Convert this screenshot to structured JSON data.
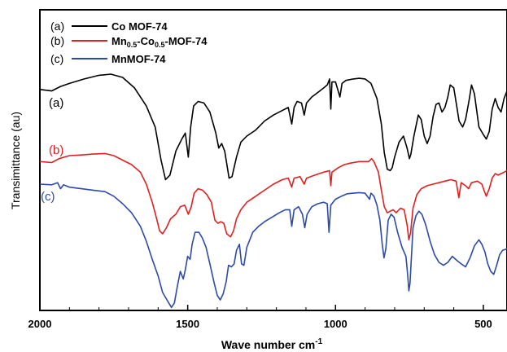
{
  "chart_data": {
    "type": "line",
    "title": "",
    "xlabel": "Wave number cm",
    "xlabel_superscript": "-1",
    "ylabel": "Transimittance (au)",
    "xlim": [
      2000,
      420
    ],
    "x_reversed": true,
    "ylim": [
      0,
      10
    ],
    "y_ticks_shown": false,
    "x_ticks": [
      2000,
      1500,
      1000,
      500
    ],
    "grid": false,
    "legend_position": "top-left",
    "series": [
      {
        "name": "Co MOF-74",
        "tag": "(a)",
        "curve_label": "(a)",
        "color": "#000000",
        "points": [
          [
            2000,
            7.35
          ],
          [
            1960,
            7.3
          ],
          [
            1930,
            7.45
          ],
          [
            1900,
            7.55
          ],
          [
            1850,
            7.7
          ],
          [
            1800,
            7.82
          ],
          [
            1760,
            7.86
          ],
          [
            1720,
            7.75
          ],
          [
            1680,
            7.4
          ],
          [
            1640,
            6.8
          ],
          [
            1610,
            6.1
          ],
          [
            1590,
            5.0
          ],
          [
            1575,
            4.35
          ],
          [
            1560,
            4.5
          ],
          [
            1540,
            5.3
          ],
          [
            1520,
            5.7
          ],
          [
            1508,
            5.9
          ],
          [
            1498,
            5.1
          ],
          [
            1490,
            6.1
          ],
          [
            1480,
            6.8
          ],
          [
            1465,
            6.95
          ],
          [
            1445,
            6.9
          ],
          [
            1425,
            6.6
          ],
          [
            1405,
            5.9
          ],
          [
            1395,
            5.4
          ],
          [
            1385,
            5.55
          ],
          [
            1375,
            5.3
          ],
          [
            1360,
            4.4
          ],
          [
            1350,
            4.45
          ],
          [
            1335,
            5.1
          ],
          [
            1320,
            5.6
          ],
          [
            1300,
            5.8
          ],
          [
            1270,
            6.0
          ],
          [
            1240,
            6.3
          ],
          [
            1210,
            6.5
          ],
          [
            1180,
            6.65
          ],
          [
            1160,
            6.75
          ],
          [
            1148,
            6.2
          ],
          [
            1140,
            6.75
          ],
          [
            1130,
            6.95
          ],
          [
            1115,
            6.9
          ],
          [
            1106,
            6.5
          ],
          [
            1098,
            6.9
          ],
          [
            1080,
            7.1
          ],
          [
            1060,
            7.25
          ],
          [
            1040,
            7.4
          ],
          [
            1028,
            7.5
          ],
          [
            1020,
            7.7
          ],
          [
            1016,
            6.7
          ],
          [
            1012,
            7.6
          ],
          [
            1000,
            7.6
          ],
          [
            985,
            7.1
          ],
          [
            978,
            7.55
          ],
          [
            965,
            7.65
          ],
          [
            940,
            7.7
          ],
          [
            920,
            7.72
          ],
          [
            900,
            7.7
          ],
          [
            880,
            7.55
          ],
          [
            860,
            7.05
          ],
          [
            845,
            6.2
          ],
          [
            835,
            5.25
          ],
          [
            825,
            4.7
          ],
          [
            815,
            4.65
          ],
          [
            808,
            4.75
          ],
          [
            800,
            5.1
          ],
          [
            785,
            5.6
          ],
          [
            770,
            5.8
          ],
          [
            758,
            5.4
          ],
          [
            750,
            5.05
          ],
          [
            745,
            5.2
          ],
          [
            735,
            5.8
          ],
          [
            720,
            6.5
          ],
          [
            710,
            6.35
          ],
          [
            700,
            5.8
          ],
          [
            690,
            5.55
          ],
          [
            680,
            5.8
          ],
          [
            670,
            6.45
          ],
          [
            660,
            6.85
          ],
          [
            650,
            6.9
          ],
          [
            640,
            6.6
          ],
          [
            630,
            6.75
          ],
          [
            620,
            7.1
          ],
          [
            612,
            7.5
          ],
          [
            600,
            7.4
          ],
          [
            590,
            6.8
          ],
          [
            582,
            6.3
          ],
          [
            570,
            6.1
          ],
          [
            560,
            6.35
          ],
          [
            548,
            7.0
          ],
          [
            540,
            7.5
          ],
          [
            530,
            7.2
          ],
          [
            515,
            6.1
          ],
          [
            500,
            5.85
          ],
          [
            490,
            5.7
          ],
          [
            480,
            5.95
          ],
          [
            470,
            6.7
          ],
          [
            460,
            7.05
          ],
          [
            450,
            6.75
          ],
          [
            440,
            6.6
          ],
          [
            430,
            7.05
          ],
          [
            420,
            7.3
          ]
        ]
      },
      {
        "name": "Mn0.5-Co0.5-MOF-74",
        "name_parts": [
          "Mn",
          "0.5",
          "-Co",
          "0.5",
          "-MOF-74"
        ],
        "tag": "(b)",
        "curve_label": "(b)",
        "color": "#e02020",
        "points": [
          [
            2000,
            4.95
          ],
          [
            1960,
            4.92
          ],
          [
            1935,
            5.05
          ],
          [
            1900,
            5.15
          ],
          [
            1860,
            5.17
          ],
          [
            1820,
            5.2
          ],
          [
            1780,
            5.22
          ],
          [
            1750,
            5.15
          ],
          [
            1720,
            5.0
          ],
          [
            1690,
            4.85
          ],
          [
            1660,
            4.6
          ],
          [
            1640,
            4.2
          ],
          [
            1620,
            3.6
          ],
          [
            1605,
            3.05
          ],
          [
            1595,
            2.65
          ],
          [
            1585,
            2.55
          ],
          [
            1572,
            2.75
          ],
          [
            1558,
            3.05
          ],
          [
            1540,
            3.2
          ],
          [
            1525,
            3.45
          ],
          [
            1510,
            3.5
          ],
          [
            1498,
            3.2
          ],
          [
            1488,
            3.45
          ],
          [
            1478,
            3.9
          ],
          [
            1465,
            4.05
          ],
          [
            1450,
            4.0
          ],
          [
            1435,
            3.85
          ],
          [
            1420,
            3.6
          ],
          [
            1408,
            3.0
          ],
          [
            1398,
            2.9
          ],
          [
            1388,
            2.95
          ],
          [
            1378,
            2.9
          ],
          [
            1368,
            2.55
          ],
          [
            1355,
            2.45
          ],
          [
            1345,
            2.65
          ],
          [
            1335,
            3.05
          ],
          [
            1320,
            3.35
          ],
          [
            1300,
            3.6
          ],
          [
            1270,
            3.8
          ],
          [
            1240,
            4.0
          ],
          [
            1210,
            4.2
          ],
          [
            1180,
            4.35
          ],
          [
            1160,
            4.4
          ],
          [
            1148,
            4.1
          ],
          [
            1140,
            4.4
          ],
          [
            1120,
            4.45
          ],
          [
            1106,
            4.2
          ],
          [
            1098,
            4.4
          ],
          [
            1070,
            4.5
          ],
          [
            1040,
            4.6
          ],
          [
            1020,
            4.65
          ],
          [
            1016,
            4.15
          ],
          [
            1012,
            4.6
          ],
          [
            990,
            4.75
          ],
          [
            970,
            4.85
          ],
          [
            950,
            4.9
          ],
          [
            920,
            4.95
          ],
          [
            900,
            4.95
          ],
          [
            888,
            4.95
          ],
          [
            878,
            5.05
          ],
          [
            870,
            4.95
          ],
          [
            855,
            4.6
          ],
          [
            845,
            4.0
          ],
          [
            835,
            3.45
          ],
          [
            825,
            3.25
          ],
          [
            815,
            3.3
          ],
          [
            805,
            3.35
          ],
          [
            795,
            3.25
          ],
          [
            780,
            3.4
          ],
          [
            768,
            3.35
          ],
          [
            758,
            2.85
          ],
          [
            752,
            2.35
          ],
          [
            746,
            2.6
          ],
          [
            738,
            3.4
          ],
          [
            725,
            3.85
          ],
          [
            710,
            4.05
          ],
          [
            690,
            4.15
          ],
          [
            670,
            4.2
          ],
          [
            650,
            4.25
          ],
          [
            630,
            4.3
          ],
          [
            610,
            4.35
          ],
          [
            592,
            4.3
          ],
          [
            583,
            3.75
          ],
          [
            575,
            4.25
          ],
          [
            560,
            4.15
          ],
          [
            550,
            4.05
          ],
          [
            540,
            4.25
          ],
          [
            520,
            4.3
          ],
          [
            505,
            4.2
          ],
          [
            498,
            4.0
          ],
          [
            490,
            3.8
          ],
          [
            480,
            4.05
          ],
          [
            470,
            4.4
          ],
          [
            460,
            4.55
          ],
          [
            450,
            4.5
          ],
          [
            440,
            4.55
          ],
          [
            430,
            4.6
          ],
          [
            420,
            4.65
          ]
        ]
      },
      {
        "name": "MnMOF-74",
        "tag": "(c)",
        "curve_label": "(c)",
        "color": "#2c4aa8",
        "points": [
          [
            2000,
            4.2
          ],
          [
            1960,
            4.18
          ],
          [
            1940,
            4.25
          ],
          [
            1930,
            4.05
          ],
          [
            1920,
            4.18
          ],
          [
            1900,
            4.1
          ],
          [
            1860,
            4.05
          ],
          [
            1820,
            4.0
          ],
          [
            1780,
            3.95
          ],
          [
            1750,
            3.8
          ],
          [
            1720,
            3.55
          ],
          [
            1690,
            3.25
          ],
          [
            1660,
            2.8
          ],
          [
            1640,
            2.3
          ],
          [
            1620,
            1.7
          ],
          [
            1600,
            1.15
          ],
          [
            1585,
            0.6
          ],
          [
            1570,
            0.35
          ],
          [
            1555,
            0.1
          ],
          [
            1545,
            0.25
          ],
          [
            1535,
            0.8
          ],
          [
            1525,
            1.3
          ],
          [
            1515,
            1.05
          ],
          [
            1508,
            1.35
          ],
          [
            1500,
            1.8
          ],
          [
            1492,
            1.7
          ],
          [
            1485,
            2.2
          ],
          [
            1475,
            2.6
          ],
          [
            1462,
            2.6
          ],
          [
            1450,
            2.4
          ],
          [
            1438,
            2.1
          ],
          [
            1425,
            1.55
          ],
          [
            1410,
            0.9
          ],
          [
            1400,
            0.5
          ],
          [
            1390,
            0.35
          ],
          [
            1380,
            0.55
          ],
          [
            1370,
            0.95
          ],
          [
            1362,
            1.5
          ],
          [
            1352,
            1.45
          ],
          [
            1343,
            1.55
          ],
          [
            1335,
            2.0
          ],
          [
            1325,
            2.2
          ],
          [
            1318,
            1.55
          ],
          [
            1310,
            1.5
          ],
          [
            1300,
            2.1
          ],
          [
            1280,
            2.6
          ],
          [
            1260,
            2.8
          ],
          [
            1240,
            2.95
          ],
          [
            1215,
            3.1
          ],
          [
            1190,
            3.25
          ],
          [
            1170,
            3.35
          ],
          [
            1155,
            3.35
          ],
          [
            1148,
            2.8
          ],
          [
            1140,
            3.35
          ],
          [
            1125,
            3.45
          ],
          [
            1112,
            3.2
          ],
          [
            1104,
            2.75
          ],
          [
            1096,
            3.2
          ],
          [
            1080,
            3.45
          ],
          [
            1060,
            3.55
          ],
          [
            1040,
            3.6
          ],
          [
            1028,
            3.55
          ],
          [
            1022,
            2.6
          ],
          [
            1016,
            3.5
          ],
          [
            1000,
            3.7
          ],
          [
            980,
            3.8
          ],
          [
            960,
            3.88
          ],
          [
            940,
            3.9
          ],
          [
            920,
            3.92
          ],
          [
            900,
            3.9
          ],
          [
            885,
            3.7
          ],
          [
            880,
            3.9
          ],
          [
            870,
            3.8
          ],
          [
            860,
            3.5
          ],
          [
            850,
            3.0
          ],
          [
            842,
            2.2
          ],
          [
            836,
            1.75
          ],
          [
            830,
            2.05
          ],
          [
            822,
            3.0
          ],
          [
            812,
            3.2
          ],
          [
            802,
            3.1
          ],
          [
            790,
            2.6
          ],
          [
            775,
            2.1
          ],
          [
            762,
            1.8
          ],
          [
            756,
            1.2
          ],
          [
            752,
            0.65
          ],
          [
            748,
            0.9
          ],
          [
            743,
            1.85
          ],
          [
            738,
            2.75
          ],
          [
            728,
            3.15
          ],
          [
            718,
            3.3
          ],
          [
            708,
            3.2
          ],
          [
            695,
            2.85
          ],
          [
            680,
            2.3
          ],
          [
            665,
            1.85
          ],
          [
            650,
            1.6
          ],
          [
            635,
            1.5
          ],
          [
            620,
            1.6
          ],
          [
            605,
            1.8
          ],
          [
            588,
            1.65
          ],
          [
            575,
            1.55
          ],
          [
            560,
            1.45
          ],
          [
            545,
            1.75
          ],
          [
            530,
            2.15
          ],
          [
            515,
            2.35
          ],
          [
            505,
            2.2
          ],
          [
            495,
            1.95
          ],
          [
            485,
            1.55
          ],
          [
            475,
            1.3
          ],
          [
            465,
            1.2
          ],
          [
            455,
            1.5
          ],
          [
            445,
            1.85
          ],
          [
            435,
            2.0
          ],
          [
            420,
            2.05
          ]
        ]
      }
    ]
  }
}
